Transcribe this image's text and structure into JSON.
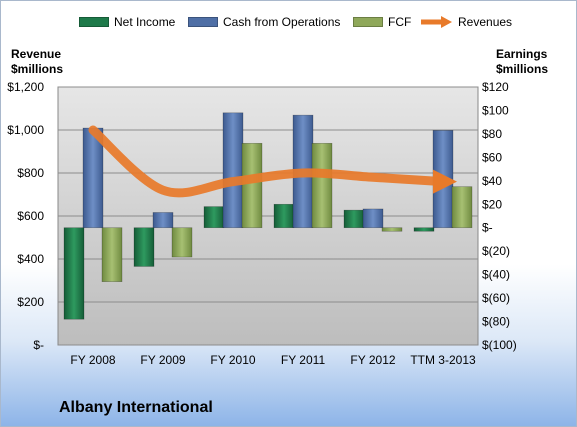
{
  "company": "Albany International",
  "y_left_title": [
    "Revenue",
    "$millions"
  ],
  "y_right_title": [
    "Earnings",
    "$millions"
  ],
  "colors": {
    "net_income": "#1e7a4a",
    "cash_from_operations": "#4f6fa6",
    "fcf": "#8fa85a",
    "revenues": "#e87a2a",
    "plot_bg": "#c8c8c8"
  },
  "chart_data": {
    "type": "bar",
    "categories": [
      "FY 2008",
      "FY 2009",
      "FY 2010",
      "FY 2011",
      "FY 2012",
      "TTM 3-2013"
    ],
    "series": [
      {
        "name": "Net Income",
        "axis": "right",
        "values": [
          -78,
          -33,
          18,
          20,
          15,
          -3
        ]
      },
      {
        "name": "Cash from Operations",
        "axis": "right",
        "values": [
          85,
          13,
          98,
          96,
          16,
          83
        ]
      },
      {
        "name": "FCF",
        "axis": "right",
        "values": [
          -46,
          -25,
          72,
          72,
          -3,
          35
        ]
      },
      {
        "name": "Revenues",
        "axis": "left",
        "type": "line",
        "values": [
          1000,
          720,
          760,
          800,
          780,
          760
        ]
      }
    ],
    "y_left": {
      "ylim": [
        0,
        1200
      ],
      "ticks": [
        "$-",
        "$200",
        "$400",
        "$600",
        "$800",
        "$1,000",
        "$1,200"
      ]
    },
    "y_right": {
      "ylim": [
        -100,
        120
      ],
      "ticks": [
        "$(100)",
        "$(80)",
        "$(60)",
        "$(40)",
        "$(20)",
        "$-",
        "$20",
        "$40",
        "$60",
        "$80",
        "$100",
        "$120"
      ]
    },
    "legend_position": "top",
    "grid": true
  }
}
